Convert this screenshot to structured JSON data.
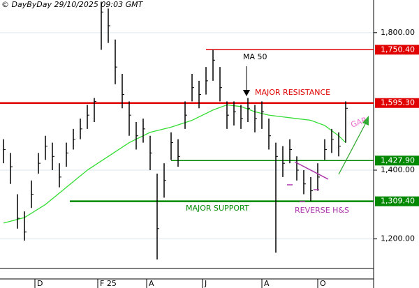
{
  "chart_data": {
    "type": "ohlc",
    "header": "© DayByDay 29/10/2025 09:03 GMT",
    "x": [
      0,
      1,
      2,
      3,
      4,
      5,
      6,
      7,
      8,
      9,
      10,
      11,
      12,
      13,
      14,
      15,
      16,
      17,
      18,
      19,
      20,
      21,
      22,
      23,
      24,
      25,
      26,
      27,
      28,
      29,
      30,
      31,
      32,
      33,
      34,
      35,
      36,
      37,
      38,
      39,
      40,
      41,
      42,
      43,
      44,
      45,
      46,
      47,
      48,
      49
    ],
    "high": [
      1490,
      1450,
      1330,
      1280,
      1370,
      1450,
      1500,
      1480,
      1420,
      1480,
      1520,
      1550,
      1590,
      1610,
      1890,
      1870,
      1780,
      1680,
      1600,
      1540,
      1550,
      1500,
      1390,
      1420,
      1510,
      1490,
      1600,
      1680,
      1660,
      1700,
      1750,
      1700,
      1600,
      1600,
      1590,
      1610,
      1590,
      1600,
      1550,
      1480,
      1470,
      1490,
      1440,
      1400,
      1380,
      1420,
      1490,
      1520,
      1510,
      1600
    ],
    "low": [
      1420,
      1360,
      1230,
      1195,
      1290,
      1390,
      1430,
      1400,
      1350,
      1410,
      1460,
      1490,
      1520,
      1540,
      1750,
      1770,
      1650,
      1580,
      1500,
      1460,
      1480,
      1400,
      1140,
      1320,
      1430,
      1410,
      1520,
      1600,
      1580,
      1620,
      1660,
      1600,
      1520,
      1530,
      1520,
      1540,
      1510,
      1520,
      1460,
      1160,
      1380,
      1420,
      1370,
      1330,
      1310,
      1340,
      1430,
      1450,
      1440,
      1480
    ],
    "close": [
      1460,
      1410,
      1260,
      1220,
      1330,
      1420,
      1470,
      1440,
      1380,
      1450,
      1490,
      1520,
      1560,
      1600,
      1860,
      1820,
      1700,
      1620,
      1560,
      1500,
      1520,
      1450,
      1230,
      1370,
      1480,
      1440,
      1560,
      1640,
      1620,
      1660,
      1720,
      1640,
      1560,
      1570,
      1550,
      1580,
      1550,
      1570,
      1500,
      1440,
      1420,
      1460,
      1400,
      1360,
      1340,
      1380,
      1460,
      1490,
      1470,
      1580
    ],
    "color": "#000000",
    "ma": {
      "name": "MA 50",
      "color": "#33dd33",
      "x": [
        0,
        3,
        6,
        9,
        12,
        15,
        18,
        21,
        24,
        27,
        30,
        32,
        34,
        36,
        38,
        40,
        42,
        44,
        46,
        48,
        49
      ],
      "values": [
        1246,
        1262,
        1300,
        1350,
        1400,
        1440,
        1480,
        1510,
        1525,
        1545,
        1575,
        1590,
        1585,
        1570,
        1560,
        1555,
        1550,
        1545,
        1530,
        1500,
        1480
      ]
    },
    "levels": [
      {
        "value": 1750.4,
        "label": "1,750.40",
        "color": "#e00000",
        "from": 29
      },
      {
        "value": 1595.3,
        "label": "1,595.30",
        "color": "#e00000",
        "from": -0.5
      },
      {
        "value": 1427.9,
        "label": "1,427.90",
        "color": "#008800",
        "from": 24
      },
      {
        "value": 1309.4,
        "label": "1,309.40",
        "color": "#008800",
        "from": 9.5
      }
    ],
    "annotations": {
      "ma": "MA 50",
      "resistance": "MAJOR RESISTANCE",
      "support": "MAJOR SUPPORT",
      "hs": "REVERSE H&S",
      "gap": "GAP"
    },
    "xlim": [
      -0.5,
      53
    ],
    "xticks": [
      {
        "value": 4.5,
        "label": "D"
      },
      {
        "value": 13.5,
        "label": "F 25"
      },
      {
        "value": 20.5,
        "label": "A"
      },
      {
        "value": 28.5,
        "label": "J"
      },
      {
        "value": 37,
        "label": "A"
      },
      {
        "value": 45,
        "label": "O"
      }
    ],
    "ylim": [
      1114,
      1895
    ],
    "yticks": [
      {
        "value": 1800,
        "label": "1,800.00"
      },
      {
        "value": 1400,
        "label": "1,400.00"
      },
      {
        "value": 1200,
        "label": "1,200.00"
      }
    ],
    "grid": true
  }
}
